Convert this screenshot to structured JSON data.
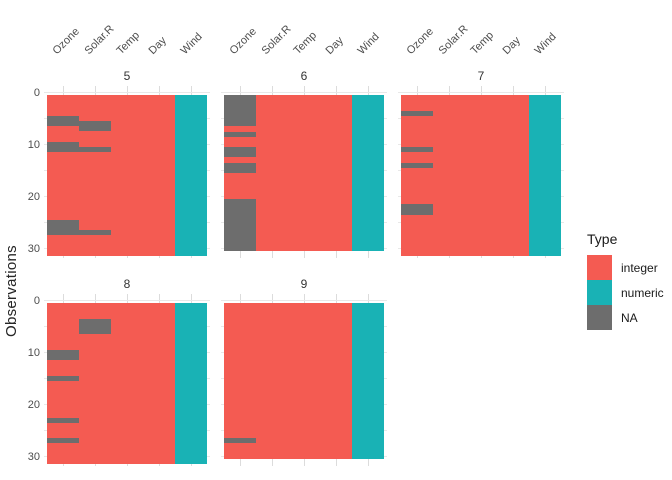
{
  "chart_data": {
    "type": "heatmap",
    "title": "",
    "x_axis": {
      "position": "top",
      "labels": [
        "Ozone",
        "Solar.R",
        "Temp",
        "Day",
        "Wind"
      ]
    },
    "y_axis": {
      "label": "Observations",
      "ticks": [
        "0",
        "10",
        "20",
        "30"
      ],
      "tick_values": [
        0,
        10,
        20,
        30
      ],
      "range": [
        0,
        31
      ]
    },
    "column_types": {
      "Ozone": "integer",
      "Solar.R": "integer",
      "Temp": "integer",
      "Day": "integer",
      "Wind": "numeric"
    },
    "type_colors": {
      "integer": "#F45B52",
      "numeric": "#19B2B5",
      "NA": "#6D6D6D"
    },
    "gridline_color_h": "#E8E8E8",
    "gridline_color_v": "#DCDCDC",
    "facets": [
      {
        "label": "5",
        "n_observations": 31,
        "na_runs": {
          "Ozone": [
            [
              5,
              6
            ],
            [
              10,
              11
            ],
            [
              25,
              27
            ]
          ],
          "Solar.R": [
            [
              6,
              7
            ],
            [
              11,
              11
            ],
            [
              27,
              27
            ]
          ]
        }
      },
      {
        "label": "6",
        "n_observations": 30,
        "na_runs": {
          "Ozone": [
            [
              1,
              6
            ],
            [
              8,
              8
            ],
            [
              11,
              12
            ],
            [
              14,
              15
            ],
            [
              21,
              30
            ]
          ]
        }
      },
      {
        "label": "7",
        "n_observations": 31,
        "na_runs": {
          "Ozone": [
            [
              4,
              4
            ],
            [
              11,
              11
            ],
            [
              14,
              14
            ],
            [
              22,
              23
            ]
          ]
        }
      },
      {
        "label": "8",
        "n_observations": 31,
        "na_runs": {
          "Ozone": [
            [
              10,
              11
            ],
            [
              15,
              15
            ],
            [
              23,
              23
            ],
            [
              27,
              27
            ]
          ],
          "Solar.R": [
            [
              4,
              6
            ]
          ]
        }
      },
      {
        "label": "9",
        "n_observations": 30,
        "na_runs": {
          "Ozone": [
            [
              27,
              27
            ]
          ]
        }
      }
    ],
    "legend": {
      "title": "Type",
      "position": "right",
      "items": [
        {
          "label": "integer",
          "color": "#F45B52"
        },
        {
          "label": "numeric",
          "color": "#19B2B5"
        },
        {
          "label": "NA",
          "color": "#6D6D6D"
        }
      ]
    }
  }
}
